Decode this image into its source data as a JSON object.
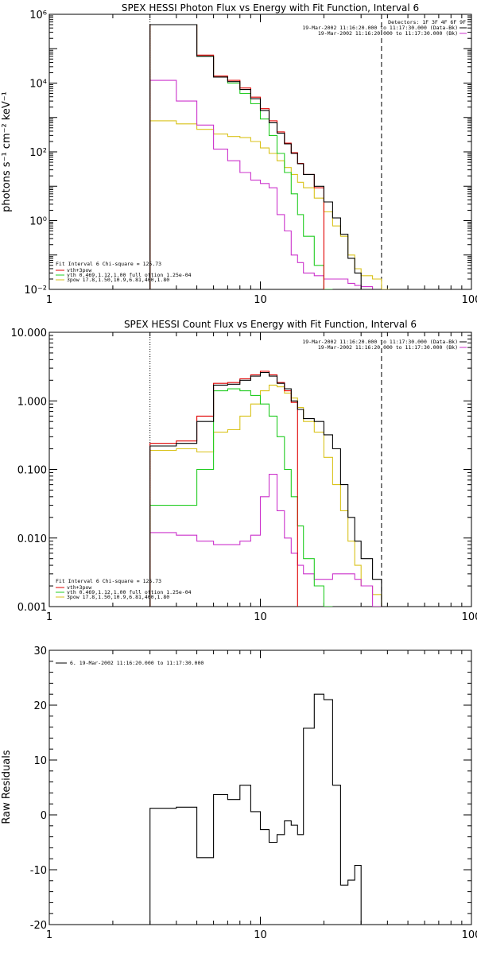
{
  "colors": {
    "black": "#000000",
    "red": "#e00000",
    "green": "#22cc22",
    "magenta": "#cc33cc",
    "yellow": "#d9c21a"
  },
  "chart_data": [
    {
      "type": "line",
      "title": "SPEX HESSI Photon Flux vs Energy with Fit Function, Interval 6",
      "ylabel": "photons s⁻¹ cm⁻² keV⁻¹",
      "xscale": "log",
      "yscale": "log",
      "xlim": [
        1,
        100
      ],
      "ylim": [
        0.01,
        1000000
      ],
      "xticks": [
        "1",
        "10",
        "100"
      ],
      "yticks": [
        "10⁻²",
        "10⁰",
        "10²",
        "10⁴",
        "10⁶"
      ],
      "vlines": [
        {
          "x": 3,
          "style": "dotted"
        },
        {
          "x": 37.5,
          "style": "dashed"
        }
      ],
      "legend_top_right": [
        "Detectors: 1F 3F 4F 6F 9F",
        "19-Mar-2002 11:16:20.000 to 11:17:30.000 (Data-Bk)",
        "19-Mar-2002 11:16:20.000 to 11:17:30.000 (Bk)"
      ],
      "legend_bottom_left": [
        "Fit Interval 6   Chi-square = 125.73",
        "vth+3pow",
        "vth 0.469,1.12,1.00  full ottion 1.25e-04",
        "3pow 17.8,1.50,10.9,6.81,400,1.80"
      ],
      "edges": [
        3,
        4,
        5,
        6,
        7,
        8,
        9,
        10,
        11,
        12,
        13,
        14,
        15,
        16,
        18,
        20,
        22,
        24,
        26,
        28,
        30,
        34,
        37.5,
        41,
        45,
        50
      ],
      "series": [
        {
          "color": "#000000",
          "values": [
            500000,
            500000,
            60000,
            15000,
            11000,
            6500,
            3500,
            1600,
            700,
            350,
            170,
            90,
            45,
            22,
            10,
            3.5,
            1.2,
            0.4,
            0.08,
            0.03,
            0.01,
            0.01
          ]
        },
        {
          "color": "#e00000",
          "values": [
            500000,
            500000,
            65000,
            16000,
            12000,
            7200,
            3900,
            1800,
            800,
            380,
            180,
            95,
            46,
            22,
            9
          ]
        },
        {
          "color": "#22cc22",
          "values": [
            500000,
            500000,
            60000,
            15000,
            10000,
            5000,
            2500,
            900,
            300,
            90,
            25,
            6,
            1.5,
            0.35,
            0.05,
            0.01
          ]
        },
        {
          "color": "#cc33cc",
          "values": [
            12000,
            3000,
            600,
            120,
            55,
            25,
            15,
            12,
            9,
            1.5,
            0.5,
            0.1,
            0.06,
            0.03,
            0.025,
            0.02,
            0.02,
            0.02,
            0.015,
            0.013,
            0.012,
            0.01
          ]
        },
        {
          "color": "#d9c21a",
          "values": [
            800,
            650,
            450,
            330,
            280,
            260,
            200,
            130,
            90,
            55,
            35,
            22,
            13,
            9,
            4.5,
            1.8,
            0.7,
            0.35,
            0.1,
            0.04,
            0.025,
            0.02,
            0.01
          ]
        }
      ]
    },
    {
      "type": "line",
      "title": "SPEX HESSI Count Flux vs Energy with Fit Function, Interval 6",
      "xscale": "log",
      "yscale": "log",
      "xlim": [
        1,
        100
      ],
      "ylim": [
        0.001,
        10
      ],
      "xticks": [
        "1",
        "10",
        "100"
      ],
      "yticks": [
        "0.001",
        "0.010",
        "0.100",
        "1.000",
        "10.000"
      ],
      "vlines": [
        {
          "x": 3,
          "style": "dotted"
        },
        {
          "x": 37.5,
          "style": "dashed"
        }
      ],
      "legend_top_right": [
        "19-Mar-2002 11:16:20.000 to 11:17:30.000 (Data-Bk)",
        "19-Mar-2002 11:16:20.000 to 11:17:30.000 (Bk)"
      ],
      "legend_bottom_left": [
        "Fit Interval 6   Chi-square = 125.73",
        "vth+3pow",
        "vth 0.469,1.12,1.00  full ottion 1.25e-04",
        "3pow 17.8,1.50,10.9,6.81,400,1.80"
      ],
      "edges": [
        3,
        4,
        5,
        6,
        7,
        8,
        9,
        10,
        11,
        12,
        13,
        14,
        15,
        16,
        18,
        20,
        22,
        24,
        26,
        28,
        30,
        34,
        37.5,
        41,
        45,
        50
      ],
      "series": [
        {
          "color": "#000000",
          "values": [
            0.22,
            0.24,
            0.5,
            1.7,
            1.75,
            2.0,
            2.3,
            2.6,
            2.3,
            1.8,
            1.5,
            1.0,
            0.75,
            0.55,
            0.5,
            0.32,
            0.2,
            0.06,
            0.02,
            0.009,
            0.005,
            0.0025,
            0.001
          ]
        },
        {
          "color": "#e00000",
          "values": [
            0.24,
            0.26,
            0.6,
            1.8,
            1.85,
            2.1,
            2.4,
            2.7,
            2.4,
            1.85,
            1.4,
            0.95
          ]
        },
        {
          "color": "#22cc22",
          "values": [
            0.03,
            0.03,
            0.1,
            1.4,
            1.5,
            1.4,
            1.2,
            0.9,
            0.6,
            0.3,
            0.1,
            0.04,
            0.015,
            0.005,
            0.002,
            0.001
          ]
        },
        {
          "color": "#cc33cc",
          "values": [
            0.012,
            0.011,
            0.009,
            0.008,
            0.008,
            0.009,
            0.011,
            0.04,
            0.085,
            0.025,
            0.01,
            0.006,
            0.004,
            0.003,
            0.0025,
            0.0025,
            0.003,
            0.003,
            0.003,
            0.0025,
            0.002,
            0.001
          ]
        },
        {
          "color": "#d9c21a",
          "values": [
            0.19,
            0.2,
            0.18,
            0.35,
            0.38,
            0.6,
            0.9,
            1.4,
            1.7,
            1.6,
            1.3,
            1.1,
            0.8,
            0.5,
            0.35,
            0.15,
            0.06,
            0.025,
            0.009,
            0.004,
            0.002,
            0.0015,
            0.001
          ]
        }
      ]
    },
    {
      "type": "line",
      "title": "",
      "ylabel": "Raw Residuals",
      "xscale": "log",
      "yscale": "linear",
      "xlim": [
        1,
        100
      ],
      "ylim": [
        -20,
        30
      ],
      "xticks": [
        "1",
        "10",
        "100"
      ],
      "yticks": [
        "-20",
        "-10",
        "0",
        "10",
        "20",
        "30"
      ],
      "legend_top_left": [
        "6. 19-Mar-2002 11:16:20.000 to 11:17:30.000"
      ],
      "edges": [
        3,
        4,
        5,
        6,
        7,
        8,
        9,
        10,
        11,
        12,
        13,
        14,
        15,
        16,
        18,
        20,
        22,
        24,
        26,
        28,
        30,
        34,
        37.5
      ],
      "series": [
        {
          "color": "#000000",
          "values": [
            1.2,
            1.4,
            -7.8,
            3.7,
            2.8,
            5.4,
            0.6,
            -2.7,
            -5.0,
            -3.6,
            -1.1,
            -1.9,
            -3.6,
            15.8,
            22.0,
            21.0,
            5.4,
            -12.8,
            -11.9,
            -9.2
          ]
        }
      ]
    }
  ]
}
